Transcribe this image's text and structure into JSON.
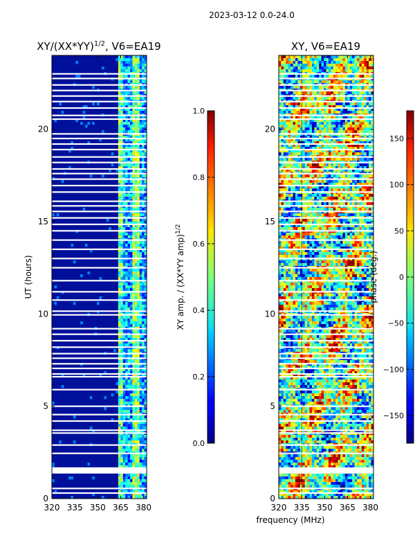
{
  "suptitle": "2023-03-12 0.0-24.0",
  "xlabel": "frequency (MHz)",
  "colors": {
    "background_amp": "#00109a",
    "gap": "#ffffff",
    "axis": "#000000"
  },
  "chart_data": [
    {
      "type": "heatmap",
      "title": "XY/(XX*YY)",
      "title_sup": "1/2",
      "title_suffix": ", V6=EA19",
      "xlabel": "",
      "ylabel": "UT (hours)",
      "xlim": [
        320,
        382
      ],
      "ylim": [
        0,
        24
      ],
      "xticks": [
        320,
        335,
        350,
        365,
        380
      ],
      "yticks": [
        0,
        5,
        10,
        15,
        20
      ],
      "grid": false,
      "colorbar": {
        "label": "XY amp. / (XX*YY amp)",
        "label_sup": "1/2",
        "range": [
          0.0,
          1.0
        ],
        "ticks": [
          "0.0",
          "0.2",
          "0.4",
          "0.6",
          "0.8",
          "1.0"
        ],
        "colormap": "jet"
      }
    },
    {
      "type": "heatmap",
      "title": "XY, V6=EA19",
      "xlabel": "frequency (MHz)",
      "ylabel": "",
      "xlim": [
        320,
        382
      ],
      "ylim": [
        0,
        24
      ],
      "xticks": [
        320,
        335,
        350,
        365,
        380
      ],
      "yticks": [
        0,
        5,
        10,
        15,
        20
      ],
      "grid": false,
      "colorbar": {
        "label": "phase (deg.)",
        "range": [
          -180,
          180
        ],
        "ticks": [
          "−150",
          "−100",
          "−50",
          "0",
          "50",
          "100",
          "150"
        ],
        "colormap": "jet"
      }
    }
  ],
  "data_gaps_ut": [
    0.3,
    0.55,
    1.45,
    1.6,
    2.45,
    2.9,
    3.55,
    3.7,
    4.2,
    4.55,
    5.0,
    5.9,
    6.6,
    6.75,
    7.05,
    7.3,
    7.6,
    7.85,
    8.2,
    8.55,
    8.9,
    9.2,
    9.95,
    10.15,
    10.75,
    11.2,
    11.8,
    12.5,
    13.0,
    13.5,
    14.0,
    14.5,
    14.85,
    15.2,
    15.55,
    15.85,
    16.1,
    16.6,
    16.95,
    17.3,
    17.6,
    17.85,
    18.2,
    18.5,
    18.9,
    19.2,
    19.5,
    19.75,
    20.55,
    20.75,
    21.15,
    21.5,
    21.8,
    22.1,
    22.4,
    22.75,
    23.0
  ]
}
